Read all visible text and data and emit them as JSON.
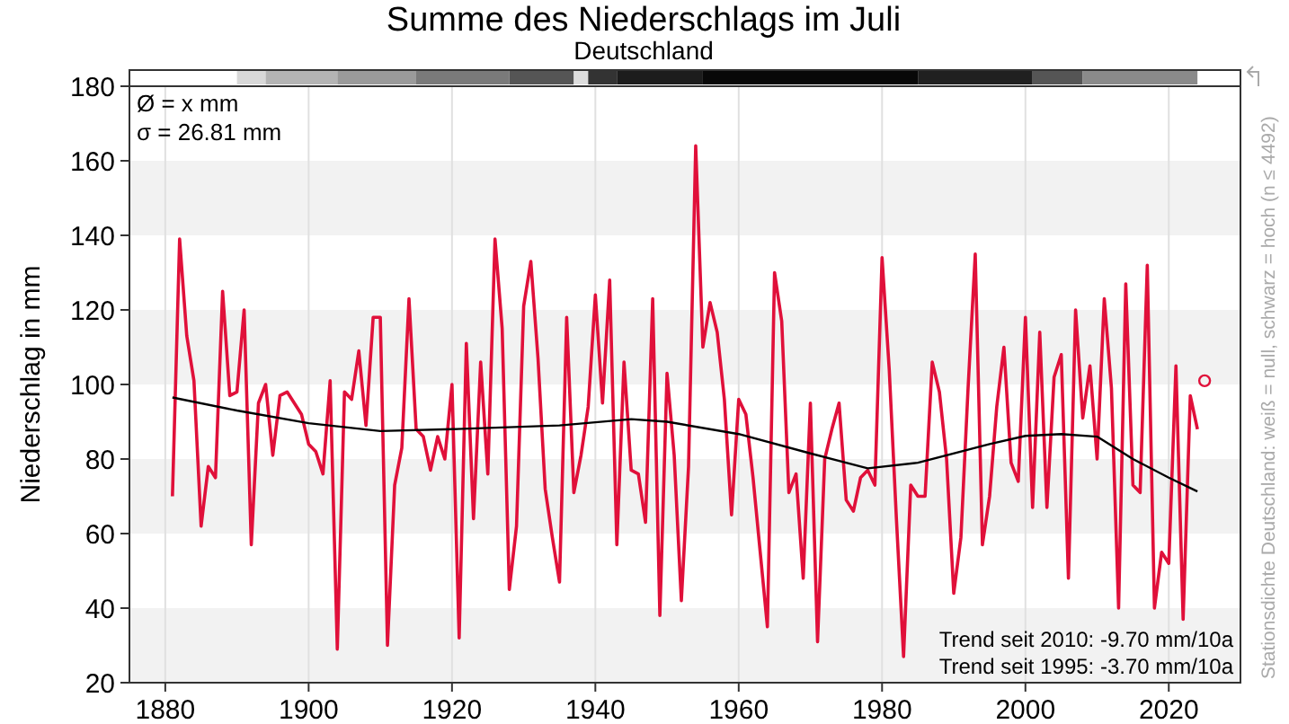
{
  "chart_data": {
    "type": "line",
    "title": "Summe des Niederschlags im Juli",
    "subtitle": "Deutschland",
    "ylabel": "Niederschlag in mm",
    "xlim": [
      1875,
      2030
    ],
    "xticks": [
      1880,
      1900,
      1920,
      1940,
      1960,
      1980,
      2000,
      2020
    ],
    "ylim": [
      20,
      180
    ],
    "yticks": [
      20,
      40,
      60,
      80,
      100,
      120,
      140,
      160,
      180
    ],
    "grid": true,
    "annotations": [
      "Ø = x mm",
      "σ = 26.81 mm",
      "Trend seit 2010: -9.70 mm/10a",
      "Trend seit 1995: -3.70 mm/10a",
      "Stationsdichte Deutschland: weiß = null, schwarz = hoch (n ≤ 4492)"
    ],
    "series": [
      {
        "color": "#e0103a",
        "x": [
          1881,
          1882,
          1883,
          1884,
          1885,
          1886,
          1887,
          1888,
          1889,
          1890,
          1891,
          1892,
          1893,
          1894,
          1895,
          1896,
          1897,
          1898,
          1899,
          1900,
          1901,
          1902,
          1903,
          1904,
          1905,
          1906,
          1907,
          1908,
          1909,
          1910,
          1911,
          1912,
          1913,
          1914,
          1915,
          1916,
          1917,
          1918,
          1919,
          1920,
          1921,
          1922,
          1923,
          1924,
          1925,
          1926,
          1927,
          1928,
          1929,
          1930,
          1931,
          1932,
          1933,
          1934,
          1935,
          1936,
          1937,
          1938,
          1939,
          1940,
          1941,
          1942,
          1943,
          1944,
          1945,
          1946,
          1947,
          1948,
          1949,
          1950,
          1951,
          1952,
          1953,
          1954,
          1955,
          1956,
          1957,
          1958,
          1959,
          1960,
          1961,
          1962,
          1963,
          1964,
          1965,
          1966,
          1967,
          1968,
          1969,
          1970,
          1971,
          1972,
          1973,
          1974,
          1975,
          1976,
          1977,
          1978,
          1979,
          1980,
          1981,
          1982,
          1983,
          1984,
          1985,
          1986,
          1987,
          1988,
          1989,
          1990,
          1991,
          1992,
          1993,
          1994,
          1995,
          1996,
          1997,
          1998,
          1999,
          2000,
          2001,
          2002,
          2003,
          2004,
          2005,
          2006,
          2007,
          2008,
          2009,
          2010,
          2011,
          2012,
          2013,
          2014,
          2015,
          2016,
          2017,
          2018,
          2019,
          2020,
          2021,
          2022,
          2023,
          2024
        ],
        "values": [
          70,
          139,
          113,
          101,
          62,
          78,
          75,
          125,
          97,
          98,
          120,
          57,
          95,
          100,
          81,
          97,
          98,
          95,
          92,
          84,
          82,
          76,
          101,
          29,
          98,
          96,
          109,
          89,
          118,
          118,
          30,
          73,
          83,
          123,
          88,
          86,
          77,
          86,
          80,
          100,
          32,
          111,
          64,
          106,
          76,
          139,
          115,
          45,
          62,
          121,
          133,
          107,
          72,
          59,
          47,
          118,
          71,
          81,
          94,
          124,
          95,
          128,
          57,
          106,
          77,
          76,
          63,
          123,
          38,
          103,
          81,
          42,
          78,
          164,
          110,
          122,
          114,
          96,
          65,
          96,
          92,
          75,
          55,
          35,
          130,
          117,
          71,
          76,
          48,
          95,
          31,
          80,
          88,
          95,
          69,
          66,
          75,
          77,
          73,
          134,
          104,
          64,
          27,
          73,
          70,
          70,
          106,
          98,
          80,
          44,
          59,
          99,
          135,
          57,
          70,
          94,
          110,
          79,
          74,
          118,
          67,
          114,
          67,
          102,
          108,
          48,
          120,
          91,
          105,
          80,
          123,
          99,
          40,
          127,
          73,
          71,
          132,
          40,
          55,
          52,
          105,
          37,
          97,
          88
        ]
      },
      {
        "type": "line",
        "color": "#000000",
        "x": [
          1881,
          1890,
          1900,
          1910,
          1920,
          1935,
          1945,
          1950,
          1960,
          1970,
          1978,
          1985,
          1995,
          2000,
          2005,
          2010,
          2015,
          2020,
          2024
        ],
        "values": [
          96.5,
          93,
          89.6,
          87.5,
          88,
          89,
          90.7,
          90,
          86.7,
          81.5,
          77.5,
          79,
          84,
          86.2,
          86.7,
          86,
          80,
          75,
          71.3
        ]
      },
      {
        "type": "scatter",
        "color": "#e0103a",
        "marker": "circle",
        "x": [
          2025
        ],
        "values": [
          101
        ]
      }
    ]
  }
}
